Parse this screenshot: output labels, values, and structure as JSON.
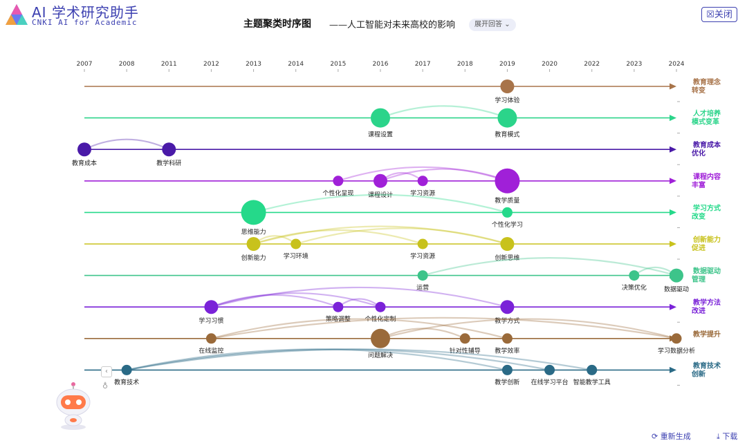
{
  "header": {
    "brand_title": "AI 学术研究助手",
    "brand_subtitle": "CNKI AI for Academic",
    "page_title": "主题聚类时序图",
    "page_subtitle": "——人工智能对未来高校的影响",
    "expand_label": "展开回答",
    "close_label": "关闭"
  },
  "footer": {
    "regenerate_label": "重新生成",
    "download_label": "下载"
  },
  "chart_data": {
    "type": "timeline-cluster",
    "years": [
      "2007",
      "2008",
      "2011",
      "2012",
      "2013",
      "2014",
      "2015",
      "2016",
      "2017",
      "2018",
      "2019",
      "2020",
      "2022",
      "2023",
      "2024"
    ],
    "lanes": [
      {
        "name": "教育理念转变",
        "line1": "教育理念",
        "line2": "转变",
        "color": "#a8744a",
        "nodes": [
          {
            "label": "学习体验",
            "year": "2019",
            "size": 2,
            "label_pos": "below"
          }
        ],
        "links": []
      },
      {
        "name": "人才培养模式变革",
        "line1": "人才培养",
        "line2": "模式变革",
        "color": "#2bd48a",
        "nodes": [
          {
            "label": "课程设置",
            "year": "2016",
            "size": 3,
            "label_pos": "below"
          },
          {
            "label": "教育模式",
            "year": "2019",
            "size": 3,
            "label_pos": "below"
          }
        ],
        "links": [
          [
            "课程设置",
            "教育模式"
          ]
        ]
      },
      {
        "name": "教育成本优化",
        "line1": "教育成本",
        "line2": "优化",
        "color": "#4a1aa8",
        "nodes": [
          {
            "label": "教育成本",
            "year": "2007",
            "size": 2,
            "label_pos": "below"
          },
          {
            "label": "教学科研",
            "year": "2011",
            "size": 2,
            "label_pos": "below"
          }
        ],
        "links": [
          [
            "教育成本",
            "教学科研"
          ]
        ]
      },
      {
        "name": "课程内容丰富",
        "line1": "课程内容",
        "line2": "丰富",
        "color": "#a020d8",
        "nodes": [
          {
            "label": "个性化呈现",
            "year": "2015",
            "size": 1,
            "label_pos": "below"
          },
          {
            "label": "课程设计",
            "year": "2016",
            "size": 2,
            "label_pos": "below"
          },
          {
            "label": "学习资源",
            "year": "2017",
            "size": 1,
            "label_pos": "below"
          },
          {
            "label": "教学质量",
            "year": "2019",
            "size": 4,
            "label_pos": "below"
          }
        ],
        "links": [
          [
            "个性化呈现",
            "教学质量"
          ],
          [
            "课程设计",
            "教学质量"
          ],
          [
            "课程设计",
            "学习资源"
          ]
        ]
      },
      {
        "name": "学习方式改变",
        "line1": "学习方式",
        "line2": "改变",
        "color": "#25d98a",
        "nodes": [
          {
            "label": "思维能力",
            "year": "2013",
            "size": 4,
            "label_pos": "below"
          },
          {
            "label": "个性化学习",
            "year": "2019",
            "size": 1,
            "label_pos": "below"
          }
        ],
        "links": [
          [
            "思维能力",
            "个性化学习"
          ]
        ]
      },
      {
        "name": "创新能力促进",
        "line1": "创新能力",
        "line2": "促进",
        "color": "#c8c21c",
        "nodes": [
          {
            "label": "创新能力",
            "year": "2013",
            "size": 2,
            "label_pos": "below"
          },
          {
            "label": "学习环境",
            "year": "2014",
            "size": 1,
            "label_pos": "below"
          },
          {
            "label": "学习资源",
            "year": "2017",
            "size": 1,
            "label_pos": "below"
          },
          {
            "label": "创新思维",
            "year": "2019",
            "size": 2,
            "label_pos": "below"
          }
        ],
        "links": [
          [
            "创新能力",
            "创新思维"
          ],
          [
            "创新能力",
            "学习资源"
          ],
          [
            "学习环境",
            "创新思维"
          ],
          [
            "创新能力",
            "学习环境"
          ]
        ]
      },
      {
        "name": "数据驱动管理",
        "line1": "数据驱动",
        "line2": "管理",
        "color": "#3dc48a",
        "nodes": [
          {
            "label": "运营",
            "year": "2017",
            "size": 1,
            "label_pos": "below"
          },
          {
            "label": "决策优化",
            "year": "2023",
            "size": 1,
            "label_pos": "below"
          },
          {
            "label": "数据驱动",
            "year": "2024",
            "size": 2,
            "label_pos": "below"
          }
        ],
        "links": [
          [
            "运营",
            "数据驱动"
          ],
          [
            "决策优化",
            "数据驱动"
          ]
        ]
      },
      {
        "name": "教学方法改进",
        "line1": "教学方法",
        "line2": "改进",
        "color": "#7a22d8",
        "nodes": [
          {
            "label": "学习习惯",
            "year": "2012",
            "size": 2,
            "label_pos": "below"
          },
          {
            "label": "策略调整",
            "year": "2015",
            "size": 1,
            "label_pos": "below"
          },
          {
            "label": "个性化定制",
            "year": "2016",
            "size": 1,
            "label_pos": "below"
          },
          {
            "label": "教学方式",
            "year": "2019",
            "size": 2,
            "label_pos": "below"
          }
        ],
        "links": [
          [
            "学习习惯",
            "教学方式"
          ],
          [
            "学习习惯",
            "个性化定制"
          ],
          [
            "学习习惯",
            "策略调整"
          ],
          [
            "策略调整",
            "个性化定制"
          ]
        ]
      },
      {
        "name": "教学提升",
        "line1": "教学提升",
        "line2": "",
        "color": "#9a6a3a",
        "nodes": [
          {
            "label": "在线监控",
            "year": "2012",
            "size": 1,
            "label_pos": "below"
          },
          {
            "label": "问题解决",
            "year": "2016",
            "size": 3,
            "label_pos": "below"
          },
          {
            "label": "针对性辅导",
            "year": "2018",
            "size": 1,
            "label_pos": "below"
          },
          {
            "label": "教学效率",
            "year": "2019",
            "size": 1,
            "label_pos": "below"
          },
          {
            "label": "学习数据分析",
            "year": "2024",
            "size": 1,
            "label_pos": "below"
          }
        ],
        "links": [
          [
            "在线监控",
            "学习数据分析"
          ],
          [
            "在线监控",
            "教学效率"
          ],
          [
            "问题解决",
            "针对性辅导"
          ],
          [
            "问题解决",
            "学习数据分析"
          ]
        ]
      },
      {
        "name": "教育技术创新",
        "line1": "教育技术",
        "line2": "创新",
        "color": "#2a6a86",
        "nodes": [
          {
            "label": "教育技术",
            "year": "2008",
            "size": 1,
            "label_pos": "below"
          },
          {
            "label": "教学创新",
            "year": "2019",
            "size": 1,
            "label_pos": "below"
          },
          {
            "label": "在线学习平台",
            "year": "2020",
            "size": 1,
            "label_pos": "below"
          },
          {
            "label": "智能教学工具",
            "year": "2022",
            "size": 1,
            "label_pos": "below"
          }
        ],
        "links": [
          [
            "教育技术",
            "教学创新"
          ],
          [
            "教育技术",
            "在线学习平台"
          ],
          [
            "教育技术",
            "智能教学工具"
          ]
        ]
      }
    ]
  }
}
